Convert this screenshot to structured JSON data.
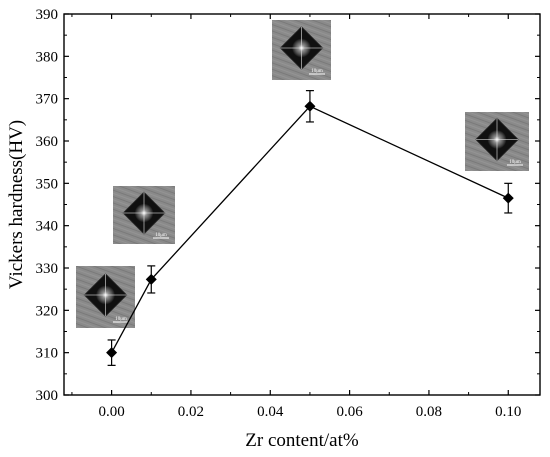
{
  "chart_data": {
    "type": "scatter",
    "xlabel": "Zr content/at%",
    "ylabel": "Vickers hardness(HV)",
    "xlim": [
      -0.012,
      0.108
    ],
    "ylim": [
      300,
      390
    ],
    "xticks": [
      0.0,
      0.02,
      0.04,
      0.06,
      0.08,
      0.1
    ],
    "xtick_labels": [
      "0.00",
      "0.02",
      "0.04",
      "0.06",
      "0.08",
      "0.10"
    ],
    "yticks": [
      300,
      310,
      320,
      330,
      340,
      350,
      360,
      370,
      380,
      390
    ],
    "ytick_labels": [
      "300",
      "310",
      "320",
      "330",
      "340",
      "350",
      "360",
      "370",
      "380",
      "390"
    ],
    "grid": false,
    "line": true,
    "marker": "diamond",
    "series": [
      {
        "x": [
          0.0,
          0.01,
          0.05,
          0.1
        ],
        "y": [
          310,
          327.3,
          368.2,
          346.5
        ],
        "error": [
          3.0,
          3.2,
          3.7,
          3.5
        ]
      }
    ],
    "insets": [
      {
        "label": "10μm",
        "near_x": 0.0
      },
      {
        "label": "10μm",
        "near_x": 0.01
      },
      {
        "label": "10μm",
        "near_x": 0.05
      },
      {
        "label": "10μm",
        "near_x": 0.1
      }
    ]
  }
}
